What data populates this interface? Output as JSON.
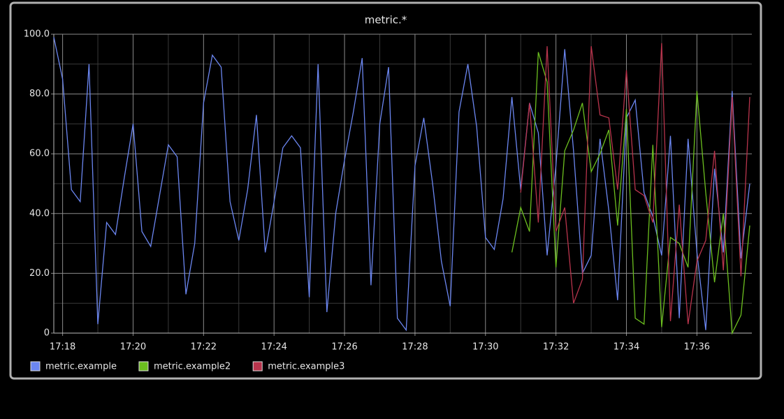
{
  "chart_data": {
    "type": "line",
    "title": "metric.*",
    "x": [
      "17:17:45",
      "17:18:00",
      "17:18:15",
      "17:18:30",
      "17:18:45",
      "17:19:00",
      "17:19:15",
      "17:19:30",
      "17:19:45",
      "17:20:00",
      "17:20:15",
      "17:20:30",
      "17:20:45",
      "17:21:00",
      "17:21:15",
      "17:21:30",
      "17:21:45",
      "17:22:00",
      "17:22:15",
      "17:22:30",
      "17:22:45",
      "17:23:00",
      "17:23:15",
      "17:23:30",
      "17:23:45",
      "17:24:00",
      "17:24:15",
      "17:24:30",
      "17:24:45",
      "17:25:00",
      "17:25:15",
      "17:25:30",
      "17:25:45",
      "17:26:00",
      "17:26:15",
      "17:26:30",
      "17:26:45",
      "17:27:00",
      "17:27:15",
      "17:27:30",
      "17:27:45",
      "17:28:00",
      "17:28:15",
      "17:28:30",
      "17:28:45",
      "17:29:00",
      "17:29:15",
      "17:29:30",
      "17:29:45",
      "17:30:00",
      "17:30:15",
      "17:30:30",
      "17:30:45",
      "17:31:00",
      "17:31:15",
      "17:31:30",
      "17:31:45",
      "17:32:00",
      "17:32:15",
      "17:32:30",
      "17:32:45",
      "17:33:00",
      "17:33:15",
      "17:33:30",
      "17:33:45",
      "17:34:00",
      "17:34:15",
      "17:34:30",
      "17:34:45",
      "17:35:00",
      "17:35:15",
      "17:35:30",
      "17:35:45",
      "17:36:00",
      "17:36:15",
      "17:36:30",
      "17:36:45",
      "17:37:00",
      "17:37:15",
      "17:37:30"
    ],
    "series": [
      {
        "name": "metric.example",
        "color": "#6b86f0",
        "values": [
          99,
          85,
          48,
          44,
          90,
          3,
          37,
          33,
          52,
          70,
          34,
          29,
          46,
          63,
          59,
          13,
          30,
          77,
          93,
          89,
          44,
          31,
          48,
          73,
          27,
          44,
          62,
          66,
          62,
          12,
          90,
          7,
          40,
          58,
          74,
          92,
          16,
          70,
          89,
          5,
          1,
          56,
          72,
          50,
          24,
          9,
          74,
          90,
          69,
          32,
          28,
          45,
          79,
          48,
          77,
          67,
          26,
          56,
          95,
          61,
          20,
          26,
          65,
          41,
          11,
          72,
          78,
          47,
          39,
          26,
          66,
          5,
          65,
          27,
          1,
          55,
          27,
          81,
          25,
          50
        ]
      },
      {
        "name": "metric.example2",
        "color": "#6cbf1f",
        "values": [
          null,
          null,
          null,
          null,
          null,
          null,
          null,
          null,
          null,
          null,
          null,
          null,
          null,
          null,
          null,
          null,
          null,
          null,
          null,
          null,
          null,
          null,
          null,
          null,
          null,
          null,
          null,
          null,
          null,
          null,
          null,
          null,
          null,
          null,
          null,
          null,
          null,
          null,
          null,
          null,
          null,
          null,
          null,
          null,
          null,
          null,
          null,
          null,
          null,
          null,
          null,
          null,
          27,
          42,
          34,
          94,
          84,
          22,
          61,
          68,
          77,
          54,
          60,
          68,
          36,
          75,
          5,
          3,
          63,
          2,
          32,
          30,
          22,
          81,
          47,
          17,
          40,
          0,
          6,
          36
        ]
      },
      {
        "name": "metric.example3",
        "color": "#b8344c",
        "values": [
          null,
          null,
          null,
          null,
          null,
          null,
          null,
          null,
          null,
          null,
          null,
          null,
          null,
          null,
          null,
          null,
          null,
          null,
          null,
          null,
          null,
          null,
          null,
          null,
          null,
          null,
          null,
          null,
          null,
          null,
          null,
          null,
          null,
          null,
          null,
          null,
          null,
          null,
          null,
          null,
          null,
          null,
          null,
          null,
          null,
          null,
          null,
          null,
          null,
          null,
          null,
          null,
          null,
          47,
          77,
          37,
          96,
          34,
          42,
          10,
          18,
          96,
          73,
          72,
          48,
          88,
          48,
          46,
          37,
          97,
          4,
          43,
          3,
          24,
          31,
          61,
          21,
          79,
          19,
          79
        ]
      }
    ],
    "xlim": [
      "17:17:45",
      "17:37:30"
    ],
    "xticks": [
      "17:18",
      "17:20",
      "17:22",
      "17:24",
      "17:26",
      "17:28",
      "17:30",
      "17:32",
      "17:34",
      "17:36"
    ],
    "xminorticks": [
      "17:19",
      "17:21",
      "17:23",
      "17:25",
      "17:27",
      "17:29",
      "17:31",
      "17:33",
      "17:35",
      "17:37"
    ],
    "ylim": [
      0,
      100
    ],
    "yticks": [
      0,
      {
        "value": 20,
        "label": "20.0"
      },
      {
        "value": 40,
        "label": "40.0"
      },
      {
        "value": 60,
        "label": "60.0"
      },
      {
        "value": 80,
        "label": "80.0"
      },
      {
        "value": 100,
        "label": "100.0"
      }
    ],
    "yminorticks": [
      10,
      30,
      50,
      70,
      90
    ],
    "grid": true,
    "legend": "bottom-left"
  }
}
